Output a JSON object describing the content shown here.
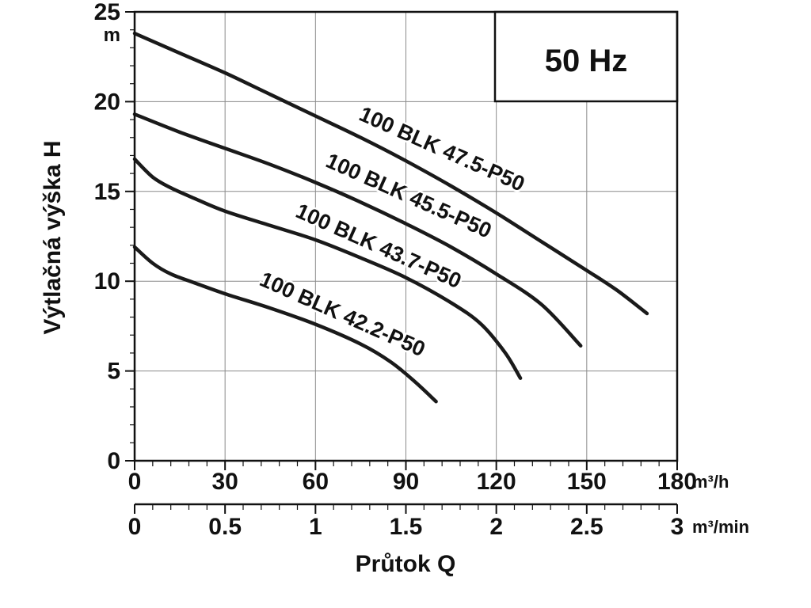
{
  "chart_data": {
    "type": "line",
    "title_badge": "50 Hz",
    "xlabel": "Průtok Q",
    "ylabel": "Výtlačná výška H",
    "y_unit": "m",
    "x_unit_primary": "m³/h",
    "x_unit_secondary": "m³/min",
    "xlim": [
      0,
      180
    ],
    "ylim": [
      0,
      25
    ],
    "x_ticks_primary": [
      0,
      30,
      60,
      90,
      120,
      150,
      180
    ],
    "x_minor_step_primary": 6,
    "y_ticks": [
      0,
      5,
      10,
      15,
      20,
      25
    ],
    "y_minor_step": 1,
    "x_ticks_secondary": [
      0,
      0.5,
      1,
      1.5,
      2,
      2.5,
      3
    ],
    "x_secondary_max": 3,
    "x_minor_step_secondary": 0.1,
    "grid": true,
    "legend_position": "labels-on-curves",
    "colors": {
      "curve": "#1a1a1a",
      "grid": "#8a8a8a",
      "axis": "#111111",
      "background": "#ffffff"
    },
    "series": [
      {
        "name": "100 BLK 47.5-P50",
        "label_pos": {
          "x": 101,
          "y": 17.0,
          "angle": 24
        },
        "points": [
          [
            0,
            23.8
          ],
          [
            15,
            22.7
          ],
          [
            30,
            21.6
          ],
          [
            45,
            20.4
          ],
          [
            60,
            19.2
          ],
          [
            75,
            18.0
          ],
          [
            90,
            16.7
          ],
          [
            105,
            15.3
          ],
          [
            120,
            13.8
          ],
          [
            135,
            12.2
          ],
          [
            150,
            10.6
          ],
          [
            160,
            9.5
          ],
          [
            170,
            8.2
          ]
        ]
      },
      {
        "name": "100 BLK 45.5-P50",
        "label_pos": {
          "x": 90,
          "y": 14.4,
          "angle": 24
        },
        "points": [
          [
            0,
            19.3
          ],
          [
            15,
            18.3
          ],
          [
            30,
            17.4
          ],
          [
            45,
            16.5
          ],
          [
            60,
            15.5
          ],
          [
            75,
            14.4
          ],
          [
            90,
            13.2
          ],
          [
            105,
            11.9
          ],
          [
            120,
            10.4
          ],
          [
            135,
            8.7
          ],
          [
            148,
            6.4
          ]
        ]
      },
      {
        "name": "100 BLK 43.7-P50",
        "label_pos": {
          "x": 80,
          "y": 11.6,
          "angle": 24
        },
        "points": [
          [
            0,
            16.8
          ],
          [
            6,
            15.8
          ],
          [
            12,
            15.2
          ],
          [
            20,
            14.6
          ],
          [
            30,
            13.9
          ],
          [
            45,
            13.1
          ],
          [
            60,
            12.3
          ],
          [
            75,
            11.3
          ],
          [
            90,
            10.2
          ],
          [
            105,
            8.8
          ],
          [
            115,
            7.6
          ],
          [
            123,
            6.0
          ],
          [
            128,
            4.6
          ]
        ]
      },
      {
        "name": "100 BLK 42.2-P50",
        "label_pos": {
          "x": 68,
          "y": 7.8,
          "angle": 24
        },
        "points": [
          [
            0,
            11.9
          ],
          [
            6,
            11.0
          ],
          [
            12,
            10.4
          ],
          [
            20,
            9.9
          ],
          [
            30,
            9.3
          ],
          [
            45,
            8.5
          ],
          [
            60,
            7.6
          ],
          [
            75,
            6.5
          ],
          [
            85,
            5.5
          ],
          [
            93,
            4.4
          ],
          [
            100,
            3.3
          ]
        ]
      }
    ]
  }
}
